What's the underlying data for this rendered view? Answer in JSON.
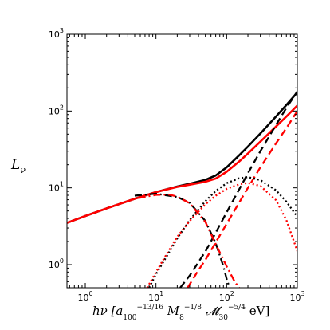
{
  "chart_data": {
    "type": "line",
    "title": "",
    "xlabel": "hν [a100^−13/16 M8^−1/8 𝓜30^−5/4 eV]",
    "ylabel": "Lν",
    "xscale": "log",
    "yscale": "log",
    "xlim": [
      0.55,
      1000
    ],
    "ylim": [
      0.5,
      1000
    ],
    "xticks": [
      1,
      10,
      100,
      1000
    ],
    "xtick_labels": [
      "10^0",
      "10^1",
      "10^2",
      "10^3"
    ],
    "yticks": [
      1,
      10,
      100,
      1000
    ],
    "ytick_labels": [
      "10^0",
      "10^1",
      "10^2",
      "10^3"
    ],
    "grid": false,
    "legend": false,
    "series": [
      {
        "color": "#000000",
        "style": "solid",
        "x": [
          0.55,
          1,
          2,
          5,
          10,
          20,
          30,
          50,
          70,
          100,
          150,
          200,
          300,
          500,
          700,
          1000
        ],
        "y": [
          3.5,
          4.3,
          5.4,
          7.2,
          8.8,
          10.4,
          11.3,
          12.7,
          14.5,
          18.5,
          26.5,
          34.5,
          51,
          85,
          120,
          175
        ]
      },
      {
        "color": "#ff0000",
        "style": "solid",
        "x": [
          0.55,
          1,
          2,
          5,
          10,
          20,
          30,
          50,
          70,
          100,
          150,
          200,
          300,
          500,
          700,
          1000
        ],
        "y": [
          3.5,
          4.3,
          5.4,
          7.2,
          8.8,
          10.3,
          11.0,
          12.0,
          13.2,
          16.2,
          22,
          28,
          40,
          63,
          85,
          118
        ]
      },
      {
        "color": "#000000",
        "style": "dashed",
        "x": [
          22,
          30,
          40,
          50,
          70,
          100,
          150,
          200,
          300,
          500,
          700,
          1000
        ],
        "y": [
          0.5,
          0.72,
          1.08,
          1.48,
          2.6,
          4.8,
          9.5,
          15.5,
          30,
          66,
          110,
          180
        ]
      },
      {
        "color": "#ff0000",
        "style": "dashed",
        "x": [
          28,
          40,
          50,
          70,
          100,
          150,
          200,
          300,
          500,
          700,
          1000
        ],
        "y": [
          0.5,
          0.85,
          1.15,
          1.95,
          3.4,
          6.4,
          10,
          18.5,
          38,
          60,
          100
        ]
      },
      {
        "color": "#000000",
        "style": "dotted",
        "x": [
          8,
          10,
          15,
          20,
          30,
          50,
          70,
          100,
          150,
          200,
          300,
          500,
          700,
          1000
        ],
        "y": [
          0.5,
          0.75,
          1.4,
          2.2,
          3.8,
          6.7,
          9.1,
          11.5,
          13.3,
          13.8,
          12.6,
          9.3,
          6.6,
          4.2
        ]
      },
      {
        "color": "#ff0000",
        "style": "dotted",
        "x": [
          7.5,
          10,
          15,
          20,
          30,
          50,
          70,
          100,
          150,
          200,
          300,
          500,
          700,
          1000
        ],
        "y": [
          0.5,
          0.8,
          1.5,
          2.3,
          3.7,
          6.1,
          7.9,
          9.7,
          11.1,
          11.6,
          10.6,
          6.9,
          3.8,
          1.5
        ]
      },
      {
        "color": "#000000",
        "style": "dashdot",
        "x": [
          5,
          10,
          20,
          30,
          50,
          70,
          90,
          100,
          110
        ],
        "y": [
          7.9,
          8.4,
          7.6,
          6.4,
          3.7,
          1.9,
          0.95,
          0.65,
          0.5
        ]
      },
      {
        "color": "#ff0000",
        "style": "dashdot",
        "x": [
          0.55,
          1,
          2,
          5,
          10,
          15,
          20,
          30,
          50,
          70,
          100,
          130,
          150
        ],
        "y": [
          3.5,
          4.3,
          5.4,
          7.2,
          8.1,
          8.2,
          7.7,
          6.3,
          3.6,
          1.85,
          0.95,
          0.6,
          0.5
        ]
      }
    ]
  }
}
